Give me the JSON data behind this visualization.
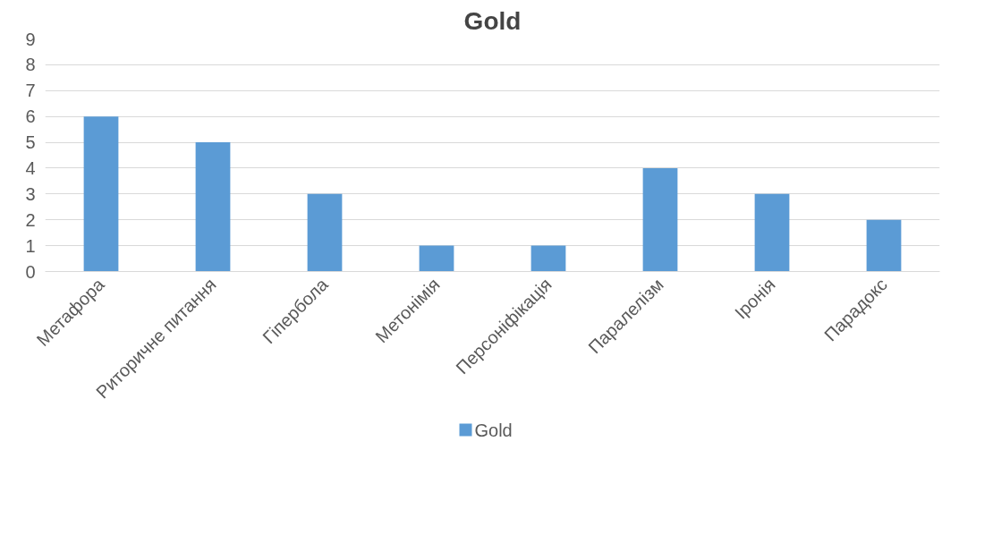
{
  "chart_data": {
    "type": "bar",
    "title": "Gold",
    "categories": [
      "Метафора",
      "Риторичне питання",
      "Гіпербола",
      "Метонімія",
      "Персоніфікація",
      "Паралелізм",
      "Іронія",
      "Парадокс"
    ],
    "series": [
      {
        "name": "Gold",
        "color": "#5b9bd5",
        "values": [
          6,
          5,
          3,
          1,
          1,
          4,
          3,
          2
        ]
      }
    ],
    "ylim": [
      0,
      9
    ],
    "yticks": [
      0,
      1,
      2,
      3,
      4,
      5,
      6,
      7,
      8,
      9
    ],
    "grid": "y",
    "legend": "bottom"
  }
}
